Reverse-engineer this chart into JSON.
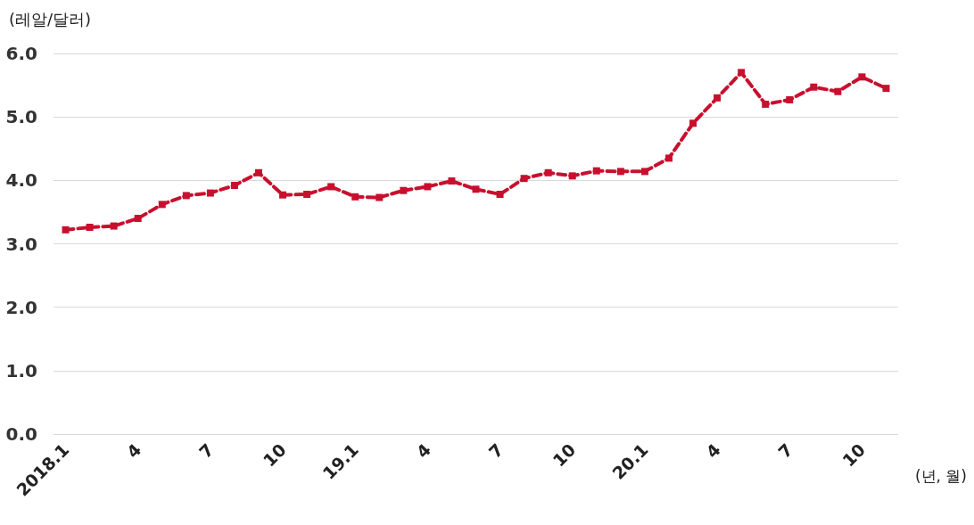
{
  "chart_data": {
    "type": "line",
    "ylabel": "(레알/달러)",
    "xlabel": "(년, 월)",
    "categories": [
      "2018.1",
      null,
      null,
      "4",
      null,
      null,
      "7",
      null,
      null,
      "10",
      null,
      null,
      "19.1",
      null,
      null,
      "4",
      null,
      null,
      "7",
      null,
      null,
      "10",
      null,
      null,
      "20.1",
      null,
      null,
      "4",
      null,
      null,
      "7",
      null,
      null,
      "10",
      null
    ],
    "series": [
      {
        "color": "#c8102e",
        "values": [
          3.22,
          3.26,
          3.28,
          3.4,
          3.62,
          3.76,
          3.8,
          3.92,
          4.12,
          3.77,
          3.78,
          3.9,
          3.74,
          3.73,
          3.84,
          3.9,
          3.99,
          3.86,
          3.78,
          4.03,
          4.12,
          4.07,
          4.15,
          4.14,
          4.14,
          4.35,
          4.9,
          5.3,
          5.7,
          5.2,
          5.27,
          5.47,
          5.4,
          5.63,
          5.45
        ]
      }
    ],
    "ylim": [
      0,
      6
    ],
    "yticks": [
      {
        "value": 0,
        "label": "0.0"
      },
      {
        "value": 1,
        "label": "1.0"
      },
      {
        "value": 2,
        "label": "2.0"
      },
      {
        "value": 3,
        "label": "3.0"
      },
      {
        "value": 4,
        "label": "4.0"
      },
      {
        "value": 5,
        "label": "5.0"
      },
      {
        "value": 6,
        "label": "6.0"
      }
    ],
    "grid": "y",
    "marker": "square",
    "line_style": "dashed"
  }
}
